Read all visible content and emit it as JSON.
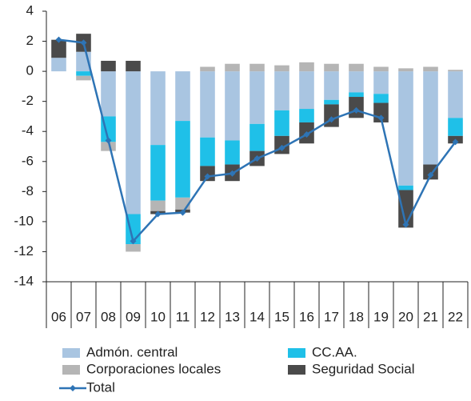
{
  "chart_data": {
    "type": "bar",
    "categories": [
      "06",
      "07",
      "08",
      "09",
      "10",
      "11",
      "12",
      "13",
      "14",
      "15",
      "16",
      "17",
      "18",
      "19",
      "20",
      "21",
      "22"
    ],
    "ylim": [
      -14,
      4
    ],
    "yticks": [
      -14,
      -12,
      -10,
      -8,
      -6,
      -4,
      -2,
      0,
      2,
      4
    ],
    "series": [
      {
        "name": "Admón. central",
        "color": "#a9c5e1",
        "values": [
          0.9,
          1.3,
          -3.0,
          -9.5,
          -4.9,
          -3.3,
          -4.4,
          -4.6,
          -3.5,
          -2.6,
          -2.5,
          -1.9,
          -1.4,
          -1.5,
          -7.6,
          -6.2,
          -3.1
        ]
      },
      {
        "name": "CC.AA.",
        "color": "#1fc0e8",
        "values": [
          0,
          -0.3,
          -1.7,
          -2.0,
          -3.7,
          -5.1,
          -1.9,
          -1.6,
          -1.8,
          -1.7,
          -0.9,
          -0.3,
          -0.3,
          -0.6,
          -0.3,
          0,
          -1.2
        ]
      },
      {
        "name": "Corporaciones locales",
        "color": "#b5b5b5",
        "values": [
          0,
          -0.3,
          -0.6,
          -0.5,
          -0.7,
          -0.8,
          0.3,
          0.5,
          0.5,
          0.4,
          0.6,
          0.5,
          0.5,
          0.3,
          0.2,
          0.3,
          0.1
        ]
      },
      {
        "name": "Seguridad Social",
        "color": "#4a4a4a",
        "values": [
          1.2,
          1.2,
          0.7,
          0.7,
          -0.2,
          -0.2,
          -1.0,
          -1.1,
          -1.0,
          -1.2,
          -1.4,
          -1.5,
          -1.4,
          -1.3,
          -2.5,
          -1.0,
          -0.5
        ]
      },
      {
        "name": "Total",
        "color": "#2e74b5",
        "type": "line",
        "values": [
          2.1,
          1.9,
          -4.6,
          -11.3,
          -9.5,
          -9.4,
          -7.0,
          -6.8,
          -5.8,
          -5.1,
          -4.2,
          -3.2,
          -2.6,
          -3.1,
          -10.2,
          -6.9,
          -4.7
        ]
      }
    ]
  }
}
